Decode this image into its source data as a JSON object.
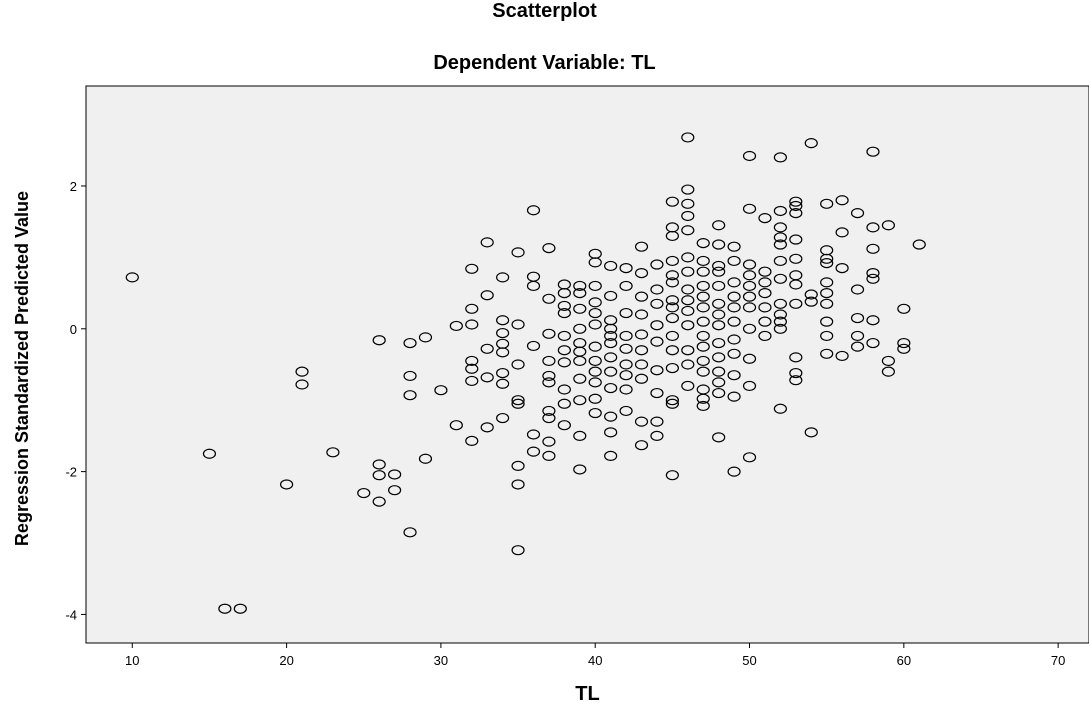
{
  "chart_data": {
    "type": "scatter",
    "title": "Scatterplot",
    "subtitle": "Dependent Variable: TL",
    "xlabel": "TL",
    "ylabel": "Regression Standardized Predicted Value",
    "xlim": [
      7,
      72
    ],
    "ylim": [
      -4.4,
      3.4
    ],
    "xticks": [
      10,
      20,
      30,
      40,
      50,
      60,
      70
    ],
    "yticks": [
      -4,
      -2,
      0,
      2
    ],
    "grid": false,
    "plot_background": "#f0f0f0",
    "marker": "open-circle",
    "points": [
      [
        10,
        0.72
      ],
      [
        15,
        -1.75
      ],
      [
        16,
        -3.92
      ],
      [
        17,
        -3.92
      ],
      [
        20,
        -2.18
      ],
      [
        21,
        -0.6
      ],
      [
        21,
        -0.78
      ],
      [
        23,
        -1.73
      ],
      [
        25,
        -2.3
      ],
      [
        26,
        -0.16
      ],
      [
        26,
        -1.9
      ],
      [
        26,
        -2.05
      ],
      [
        26,
        -2.42
      ],
      [
        27,
        -2.04
      ],
      [
        27,
        -2.26
      ],
      [
        28,
        -0.66
      ],
      [
        28,
        -0.93
      ],
      [
        28,
        -0.2
      ],
      [
        28,
        -2.85
      ],
      [
        29,
        -0.12
      ],
      [
        29,
        -1.82
      ],
      [
        30,
        -0.86
      ],
      [
        31,
        0.04
      ],
      [
        31,
        -1.35
      ],
      [
        32,
        0.84
      ],
      [
        32,
        0.28
      ],
      [
        32,
        0.06
      ],
      [
        32,
        -0.45
      ],
      [
        32,
        -0.56
      ],
      [
        32,
        -0.73
      ],
      [
        32,
        -1.57
      ],
      [
        33,
        1.21
      ],
      [
        33,
        0.47
      ],
      [
        33,
        -0.28
      ],
      [
        33,
        -0.68
      ],
      [
        33,
        -1.38
      ],
      [
        34,
        0.72
      ],
      [
        34,
        0.12
      ],
      [
        34,
        -0.06
      ],
      [
        34,
        -0.21
      ],
      [
        34,
        -0.33
      ],
      [
        34,
        -0.62
      ],
      [
        34,
        -0.77
      ],
      [
        34,
        -1.25
      ],
      [
        35,
        1.07
      ],
      [
        35,
        0.06
      ],
      [
        35,
        -0.5
      ],
      [
        35,
        -1.0
      ],
      [
        35,
        -1.05
      ],
      [
        35,
        -1.92
      ],
      [
        35,
        -2.18
      ],
      [
        35,
        -3.1
      ],
      [
        36,
        1.66
      ],
      [
        36,
        0.73
      ],
      [
        36,
        0.6
      ],
      [
        36,
        -0.24
      ],
      [
        36,
        -1.48
      ],
      [
        36,
        -1.72
      ],
      [
        37,
        1.13
      ],
      [
        37,
        0.42
      ],
      [
        37,
        -0.07
      ],
      [
        37,
        -0.45
      ],
      [
        37,
        -0.66
      ],
      [
        37,
        -0.75
      ],
      [
        37,
        -1.15
      ],
      [
        37,
        -1.25
      ],
      [
        37,
        -1.58
      ],
      [
        37,
        -1.78
      ],
      [
        38,
        0.62
      ],
      [
        38,
        0.5
      ],
      [
        38,
        0.32
      ],
      [
        38,
        0.22
      ],
      [
        38,
        -0.1
      ],
      [
        38,
        -0.3
      ],
      [
        38,
        -0.47
      ],
      [
        38,
        -0.85
      ],
      [
        38,
        -1.05
      ],
      [
        38,
        -1.35
      ],
      [
        39,
        0.6
      ],
      [
        39,
        0.5
      ],
      [
        39,
        0.28
      ],
      [
        39,
        0.0
      ],
      [
        39,
        -0.2
      ],
      [
        39,
        -0.32
      ],
      [
        39,
        -0.45
      ],
      [
        39,
        -0.7
      ],
      [
        39,
        -1.0
      ],
      [
        39,
        -1.5
      ],
      [
        39,
        -1.97
      ],
      [
        40,
        1.05
      ],
      [
        40,
        0.93
      ],
      [
        40,
        0.6
      ],
      [
        40,
        0.37
      ],
      [
        40,
        0.22
      ],
      [
        40,
        0.06
      ],
      [
        40,
        -0.25
      ],
      [
        40,
        -0.45
      ],
      [
        40,
        -0.6
      ],
      [
        40,
        -0.75
      ],
      [
        40,
        -0.98
      ],
      [
        40,
        -1.18
      ],
      [
        41,
        0.88
      ],
      [
        41,
        0.46
      ],
      [
        41,
        0.12
      ],
      [
        41,
        0.0
      ],
      [
        41,
        -0.1
      ],
      [
        41,
        -0.2
      ],
      [
        41,
        -0.4
      ],
      [
        41,
        -0.6
      ],
      [
        41,
        -0.83
      ],
      [
        41,
        -1.23
      ],
      [
        41,
        -1.45
      ],
      [
        41,
        -1.78
      ],
      [
        42,
        0.85
      ],
      [
        42,
        0.6
      ],
      [
        42,
        0.22
      ],
      [
        42,
        -0.1
      ],
      [
        42,
        -0.28
      ],
      [
        42,
        -0.5
      ],
      [
        42,
        -0.65
      ],
      [
        42,
        -0.85
      ],
      [
        42,
        -1.15
      ],
      [
        43,
        1.15
      ],
      [
        43,
        0.78
      ],
      [
        43,
        0.45
      ],
      [
        43,
        0.2
      ],
      [
        43,
        -0.08
      ],
      [
        43,
        -0.3
      ],
      [
        43,
        -0.5
      ],
      [
        43,
        -0.7
      ],
      [
        43,
        -1.3
      ],
      [
        43,
        -1.63
      ],
      [
        44,
        0.9
      ],
      [
        44,
        0.55
      ],
      [
        44,
        0.35
      ],
      [
        44,
        0.05
      ],
      [
        44,
        -0.18
      ],
      [
        44,
        -0.58
      ],
      [
        44,
        -0.9
      ],
      [
        44,
        -1.3
      ],
      [
        44,
        -1.5
      ],
      [
        45,
        1.78
      ],
      [
        45,
        1.42
      ],
      [
        45,
        1.3
      ],
      [
        45,
        0.95
      ],
      [
        45,
        0.75
      ],
      [
        45,
        0.65
      ],
      [
        45,
        0.4
      ],
      [
        45,
        0.3
      ],
      [
        45,
        0.15
      ],
      [
        45,
        -0.1
      ],
      [
        45,
        -0.3
      ],
      [
        45,
        -0.55
      ],
      [
        45,
        -1.0
      ],
      [
        45,
        -1.05
      ],
      [
        45,
        -2.05
      ],
      [
        46,
        2.68
      ],
      [
        46,
        1.95
      ],
      [
        46,
        1.75
      ],
      [
        46,
        1.58
      ],
      [
        46,
        1.38
      ],
      [
        46,
        1.0
      ],
      [
        46,
        0.8
      ],
      [
        46,
        0.55
      ],
      [
        46,
        0.4
      ],
      [
        46,
        0.25
      ],
      [
        46,
        0.05
      ],
      [
        46,
        -0.3
      ],
      [
        46,
        -0.5
      ],
      [
        46,
        -0.8
      ],
      [
        47,
        1.2
      ],
      [
        47,
        0.95
      ],
      [
        47,
        0.8
      ],
      [
        47,
        0.6
      ],
      [
        47,
        0.45
      ],
      [
        47,
        0.3
      ],
      [
        47,
        0.1
      ],
      [
        47,
        -0.1
      ],
      [
        47,
        -0.25
      ],
      [
        47,
        -0.45
      ],
      [
        47,
        -0.6
      ],
      [
        47,
        -0.85
      ],
      [
        47,
        -0.98
      ],
      [
        47,
        -1.08
      ],
      [
        48,
        1.45
      ],
      [
        48,
        1.18
      ],
      [
        48,
        0.88
      ],
      [
        48,
        0.8
      ],
      [
        48,
        0.6
      ],
      [
        48,
        0.35
      ],
      [
        48,
        0.2
      ],
      [
        48,
        0.05
      ],
      [
        48,
        -0.2
      ],
      [
        48,
        -0.4
      ],
      [
        48,
        -0.6
      ],
      [
        48,
        -0.75
      ],
      [
        48,
        -0.9
      ],
      [
        48,
        -1.52
      ],
      [
        49,
        1.15
      ],
      [
        49,
        0.95
      ],
      [
        49,
        0.65
      ],
      [
        49,
        0.45
      ],
      [
        49,
        0.3
      ],
      [
        49,
        0.1
      ],
      [
        49,
        -0.15
      ],
      [
        49,
        -0.35
      ],
      [
        49,
        -0.65
      ],
      [
        49,
        -0.95
      ],
      [
        49,
        -2.0
      ],
      [
        50,
        2.42
      ],
      [
        50,
        1.68
      ],
      [
        50,
        0.9
      ],
      [
        50,
        0.75
      ],
      [
        50,
        0.6
      ],
      [
        50,
        0.45
      ],
      [
        50,
        0.3
      ],
      [
        50,
        0.0
      ],
      [
        50,
        -0.42
      ],
      [
        50,
        -0.8
      ],
      [
        50,
        -1.8
      ],
      [
        51,
        1.55
      ],
      [
        51,
        0.8
      ],
      [
        51,
        0.65
      ],
      [
        51,
        0.5
      ],
      [
        51,
        0.3
      ],
      [
        51,
        0.1
      ],
      [
        51,
        -0.1
      ],
      [
        52,
        2.4
      ],
      [
        52,
        1.65
      ],
      [
        52,
        1.42
      ],
      [
        52,
        1.28
      ],
      [
        52,
        1.18
      ],
      [
        52,
        0.95
      ],
      [
        52,
        0.7
      ],
      [
        52,
        0.35
      ],
      [
        52,
        0.2
      ],
      [
        52,
        0.1
      ],
      [
        52,
        0.0
      ],
      [
        52,
        -1.12
      ],
      [
        53,
        1.78
      ],
      [
        53,
        1.72
      ],
      [
        53,
        1.62
      ],
      [
        53,
        1.25
      ],
      [
        53,
        0.98
      ],
      [
        53,
        0.75
      ],
      [
        53,
        0.62
      ],
      [
        53,
        0.35
      ],
      [
        53,
        -0.4
      ],
      [
        53,
        -0.62
      ],
      [
        53,
        -0.72
      ],
      [
        54,
        2.6
      ],
      [
        54,
        0.48
      ],
      [
        54,
        0.38
      ],
      [
        54,
        -1.45
      ],
      [
        55,
        1.75
      ],
      [
        55,
        1.1
      ],
      [
        55,
        0.98
      ],
      [
        55,
        0.92
      ],
      [
        55,
        0.65
      ],
      [
        55,
        0.5
      ],
      [
        55,
        0.35
      ],
      [
        55,
        0.1
      ],
      [
        55,
        -0.1
      ],
      [
        55,
        -0.35
      ],
      [
        56,
        1.8
      ],
      [
        56,
        1.35
      ],
      [
        56,
        0.85
      ],
      [
        56,
        -0.38
      ],
      [
        57,
        1.62
      ],
      [
        57,
        0.55
      ],
      [
        57,
        0.15
      ],
      [
        57,
        -0.1
      ],
      [
        57,
        -0.25
      ],
      [
        58,
        2.48
      ],
      [
        58,
        1.42
      ],
      [
        58,
        1.12
      ],
      [
        58,
        0.78
      ],
      [
        58,
        0.7
      ],
      [
        58,
        0.12
      ],
      [
        58,
        -0.2
      ],
      [
        59,
        1.45
      ],
      [
        59,
        -0.45
      ],
      [
        59,
        -0.6
      ],
      [
        60,
        0.28
      ],
      [
        60,
        -0.2
      ],
      [
        60,
        -0.28
      ],
      [
        61,
        1.18
      ]
    ]
  }
}
